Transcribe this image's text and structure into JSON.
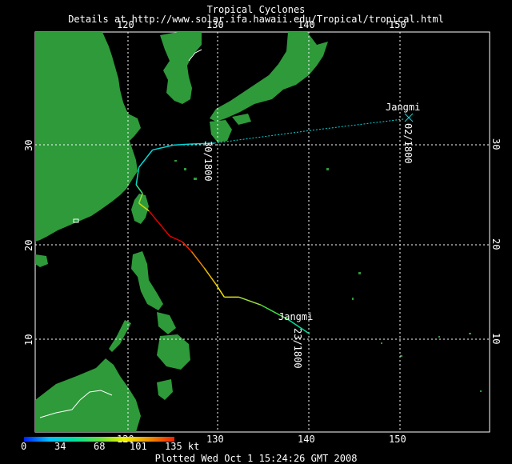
{
  "header": {
    "title": "Tropical Cyclones",
    "subtitle": "Details at http://www.solar.ifa.hawaii.edu/Tropical/tropical.html"
  },
  "axes": {
    "lon_ticks": [
      "120",
      "130",
      "140",
      "150"
    ],
    "lat_ticks": [
      "10",
      "20",
      "30"
    ],
    "lon_range": [
      116,
      160
    ],
    "lat_range": [
      1,
      40
    ]
  },
  "colors": {
    "ocean": "#000000",
    "land": "#2e9a3a",
    "grid": "#ffffff",
    "border": "#ffffff"
  },
  "storm": {
    "name": "Jangmi",
    "label_start": "23/1800",
    "label_mid": "30/1800",
    "label_end": "02/1800",
    "track": [
      {
        "lon": 140.0,
        "lat": 10.8,
        "color": "#00d8d8"
      },
      {
        "lon": 137.6,
        "lat": 12.3,
        "color": "#00e0a0"
      },
      {
        "lon": 134.6,
        "lat": 13.8,
        "color": "#40e040"
      },
      {
        "lon": 132.2,
        "lat": 14.6,
        "color": "#a0e040"
      },
      {
        "lon": 130.6,
        "lat": 14.6,
        "color": "#d8e020"
      },
      {
        "lon": 129.7,
        "lat": 15.9,
        "color": "#f0e000"
      },
      {
        "lon": 128.4,
        "lat": 17.6,
        "color": "#f0c000"
      },
      {
        "lon": 127.0,
        "lat": 19.3,
        "color": "#f08000"
      },
      {
        "lon": 126.0,
        "lat": 20.3,
        "color": "#f02000"
      },
      {
        "lon": 124.6,
        "lat": 20.9,
        "color": "#e00000"
      },
      {
        "lon": 122.3,
        "lat": 23.5,
        "color": "#e00000"
      },
      {
        "lon": 121.2,
        "lat": 24.3,
        "color": "#d8d800"
      },
      {
        "lon": 121.6,
        "lat": 25.3,
        "color": "#a0e040"
      },
      {
        "lon": 120.9,
        "lat": 26.2,
        "color": "#40e080"
      },
      {
        "lon": 121.2,
        "lat": 28.0,
        "color": "#00e0c0"
      },
      {
        "lon": 122.7,
        "lat": 29.8,
        "color": "#00e0e0"
      },
      {
        "lon": 125.0,
        "lat": 30.3,
        "color": "#00d8d8"
      },
      {
        "lon": 126.8,
        "lat": 30.4,
        "color": "#00d8d8"
      },
      {
        "lon": 129.5,
        "lat": 30.5,
        "color": "#00d8d8"
      },
      {
        "lon": 140.0,
        "lat": 31.8,
        "color": "#00d8d8"
      },
      {
        "lon": 150.5,
        "lat": 33.0,
        "color": "#00d8d8"
      }
    ]
  },
  "colorbar": {
    "labels": [
      "0",
      "34",
      "68",
      "101",
      "135 kt"
    ],
    "stops": [
      "#0020ff",
      "#00c0ff",
      "#00e0a0",
      "#60e040",
      "#f0f000",
      "#f09000",
      "#f02000"
    ]
  },
  "footer": "Plotted Wed Oct  1 15:24:26 GMT 2008"
}
